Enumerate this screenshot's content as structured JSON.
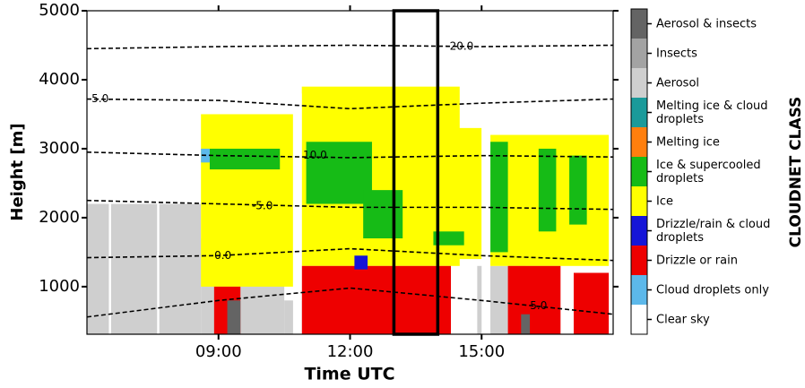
{
  "chart_data": {
    "type": "classification",
    "x_label": "Time UTC",
    "y_label": "Height [m]",
    "xlim": [
      6,
      18
    ],
    "xticks": [
      {
        "value": 9,
        "label": "09:00"
      },
      {
        "value": 12,
        "label": "12:00"
      },
      {
        "value": 15,
        "label": "15:00"
      }
    ],
    "ylim": [
      310,
      5000
    ],
    "yticks": [
      1000,
      2000,
      3000,
      4000,
      5000
    ],
    "colorbar_label": "CLOUDNET CLASS",
    "classes": [
      {
        "name": "Clear sky",
        "color": "#ffffff"
      },
      {
        "name": "Cloud droplets only",
        "color": "#5cb8ea"
      },
      {
        "name": "Drizzle or rain",
        "color": "#ee0000"
      },
      {
        "name": "Drizzle/rain & cloud droplets",
        "color": "#1515d8"
      },
      {
        "name": "Ice",
        "color": "#ffff00"
      },
      {
        "name": "Ice & supercooled droplets",
        "color": "#16bb16"
      },
      {
        "name": "Melting ice",
        "color": "#ff7f0e"
      },
      {
        "name": "Melting ice & cloud droplets",
        "color": "#1a9a9a"
      },
      {
        "name": "Aerosol",
        "color": "#cfcfcf"
      },
      {
        "name": "Insects",
        "color": "#a3a3a3"
      },
      {
        "name": "Aerosol & insects",
        "color": "#646464"
      }
    ],
    "patches": [
      {
        "class": 8,
        "t": [
          6,
          8.6
        ],
        "h": [
          310,
          2200
        ]
      },
      {
        "class": 8,
        "t": [
          8.6,
          9.3
        ],
        "h": [
          310,
          1700
        ]
      },
      {
        "class": 8,
        "t": [
          9.3,
          10.5
        ],
        "h": [
          310,
          1900
        ]
      },
      {
        "class": 8,
        "t": [
          10.5,
          11
        ],
        "h": [
          310,
          800
        ]
      },
      {
        "class": 8,
        "t": [
          14.9,
          16
        ],
        "h": [
          310,
          1300
        ]
      },
      {
        "class": 4,
        "t": [
          8.6,
          10.7
        ],
        "h": [
          1000,
          3500
        ]
      },
      {
        "class": 4,
        "t": [
          10.9,
          14.5
        ],
        "h": [
          1300,
          3900
        ]
      },
      {
        "class": 4,
        "t": [
          14.3,
          15
        ],
        "h": [
          1400,
          3300
        ]
      },
      {
        "class": 4,
        "t": [
          15.2,
          17.9
        ],
        "h": [
          1300,
          3200
        ]
      },
      {
        "class": 5,
        "t": [
          8.8,
          10.4
        ],
        "h": [
          2700,
          3000
        ]
      },
      {
        "class": 5,
        "t": [
          11,
          12.5
        ],
        "h": [
          2200,
          3100
        ]
      },
      {
        "class": 5,
        "t": [
          12.3,
          13.2
        ],
        "h": [
          1700,
          2400
        ]
      },
      {
        "class": 5,
        "t": [
          13.9,
          14.6
        ],
        "h": [
          1600,
          1800
        ]
      },
      {
        "class": 5,
        "t": [
          15.2,
          15.6
        ],
        "h": [
          1500,
          3100
        ]
      },
      {
        "class": 5,
        "t": [
          16.3,
          16.7
        ],
        "h": [
          1800,
          3000
        ]
      },
      {
        "class": 5,
        "t": [
          17,
          17.4
        ],
        "h": [
          1900,
          2900
        ]
      },
      {
        "class": 2,
        "t": [
          8.9,
          9.5
        ],
        "h": [
          310,
          1000
        ]
      },
      {
        "class": 2,
        "t": [
          10.9,
          14.3
        ],
        "h": [
          310,
          1300
        ]
      },
      {
        "class": 2,
        "t": [
          15.6,
          16.8
        ],
        "h": [
          310,
          1300
        ]
      },
      {
        "class": 2,
        "t": [
          17.1,
          17.9
        ],
        "h": [
          310,
          1200
        ]
      },
      {
        "class": 3,
        "t": [
          12.1,
          12.4
        ],
        "h": [
          1250,
          1450
        ]
      },
      {
        "class": 1,
        "t": [
          8.6,
          8.8
        ],
        "h": [
          2800,
          3000
        ]
      },
      {
        "class": 10,
        "t": [
          9.2,
          9.5
        ],
        "h": [
          310,
          800
        ]
      },
      {
        "class": 10,
        "t": [
          15.9,
          16.1
        ],
        "h": [
          310,
          600
        ]
      },
      {
        "class": 0,
        "t": [
          6.5,
          6.55
        ],
        "h": [
          310,
          2200
        ]
      },
      {
        "class": 0,
        "t": [
          7.6,
          7.65
        ],
        "h": [
          310,
          2200
        ]
      },
      {
        "class": 0,
        "t": [
          10.7,
          10.9
        ],
        "h": [
          310,
          3800
        ]
      },
      {
        "class": 0,
        "t": [
          15,
          15.2
        ],
        "h": [
          310,
          3600
        ]
      }
    ],
    "contours": [
      {
        "t": [
          6,
          9,
          12,
          15,
          18
        ],
        "h": [
          4450,
          4480,
          4500,
          4480,
          4500
        ],
        "label": "-20.0",
        "label_t": 14.5,
        "label_h": 4480
      },
      {
        "t": [
          6,
          9,
          12,
          15,
          18
        ],
        "h": [
          3720,
          3700,
          3580,
          3660,
          3720
        ],
        "label": "5.0",
        "label_t": 6.3,
        "label_h": 3720
      },
      {
        "t": [
          6,
          9,
          12,
          15,
          18
        ],
        "h": [
          2950,
          2900,
          2870,
          2900,
          2880
        ],
        "label": "10.0",
        "label_t": 11.2,
        "label_h": 2900
      },
      {
        "t": [
          6,
          9,
          12,
          15,
          18
        ],
        "h": [
          2250,
          2200,
          2150,
          2150,
          2120
        ],
        "label": "-5.0",
        "label_t": 10,
        "label_h": 2170
      },
      {
        "t": [
          6,
          9,
          12,
          15,
          18
        ],
        "h": [
          1420,
          1450,
          1550,
          1450,
          1380
        ],
        "label": "0.0",
        "label_t": 9.1,
        "label_h": 1450
      },
      {
        "t": [
          6,
          9,
          12,
          15,
          18
        ],
        "h": [
          560,
          800,
          980,
          800,
          600
        ],
        "label": "5.0",
        "label_t": 16.3,
        "label_h": 720
      }
    ],
    "highlight": {
      "t": [
        13,
        14
      ]
    }
  }
}
